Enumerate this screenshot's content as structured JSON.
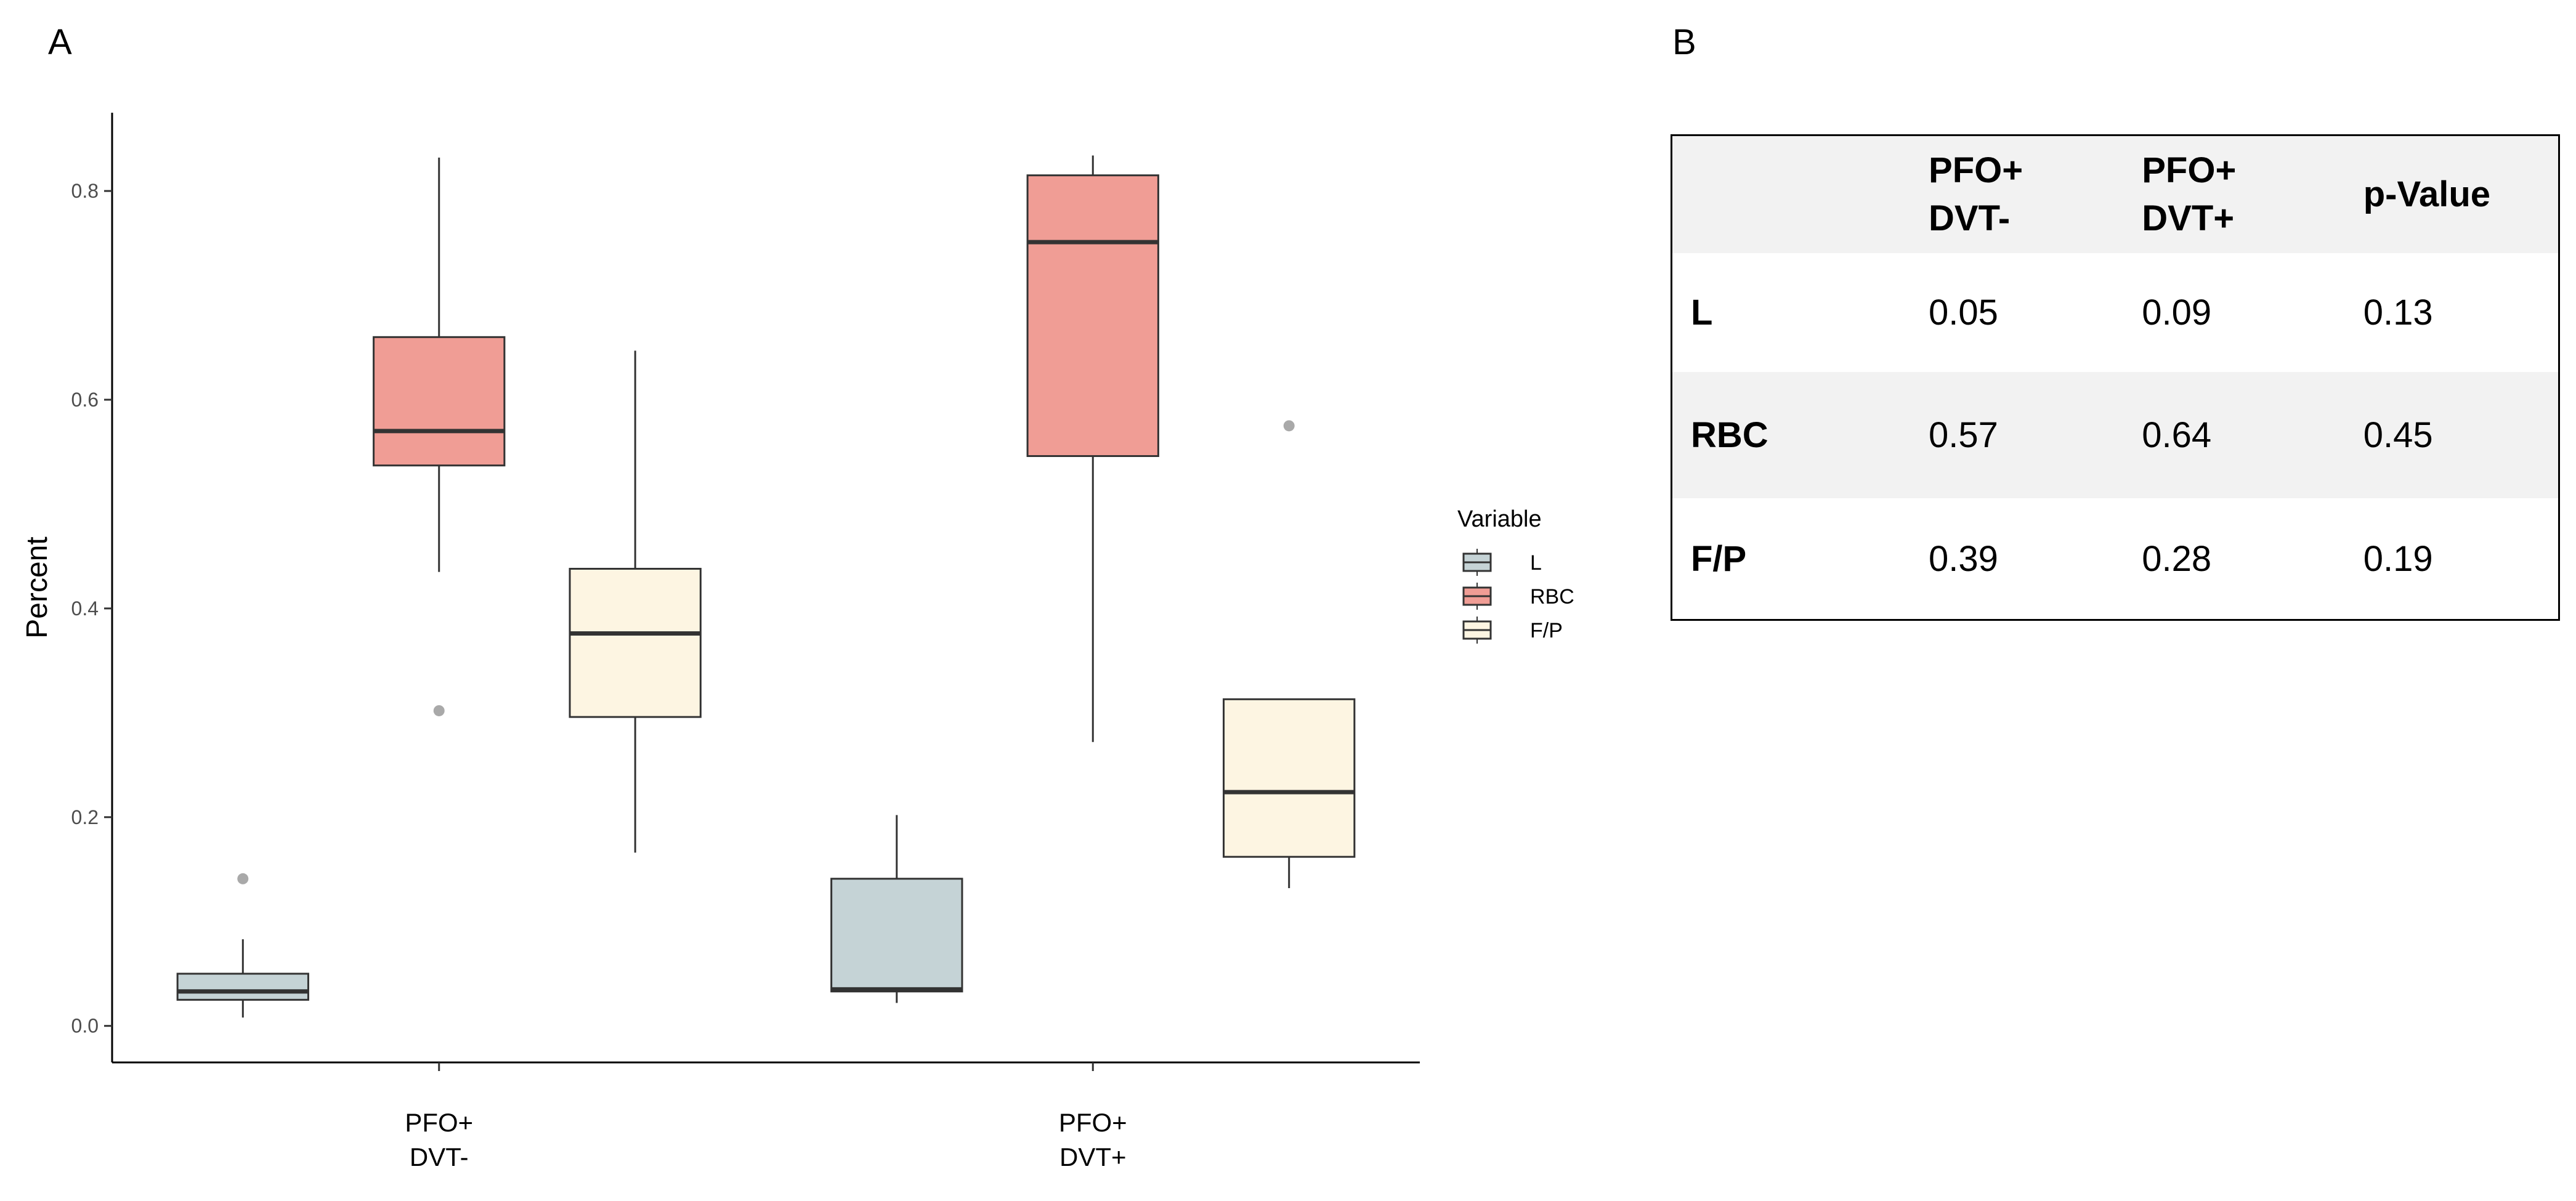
{
  "panel_labels": {
    "a": "A",
    "b": "B"
  },
  "colors": {
    "L": "#c5d3d6",
    "RBC": "#f09d95",
    "F/P": "#fdf5e2",
    "outline": "#333333",
    "median": "#333333",
    "outlier": "#a9a9a9"
  },
  "chart_data": {
    "type": "box",
    "ylabel": "Percent",
    "xlabel": "",
    "ylim": [
      -0.035,
      0.875
    ],
    "yticks": [
      0.0,
      0.2,
      0.4,
      0.6,
      0.8
    ],
    "ytick_labels": [
      "0.0",
      "0.2",
      "0.4",
      "0.6",
      "0.8"
    ],
    "grid": false,
    "legend_position": "right",
    "legend_title": "Variable",
    "categories": [
      {
        "lines": [
          "PFO+",
          "DVT-"
        ]
      },
      {
        "lines": [
          "PFO+",
          "DVT+"
        ]
      }
    ],
    "series": [
      {
        "name": "L",
        "boxes": [
          {
            "min": 0.008,
            "q1": 0.025,
            "median": 0.033,
            "q3": 0.05,
            "max": 0.083,
            "outliers": [
              0.141
            ]
          },
          {
            "min": 0.022,
            "q1": 0.033,
            "median": 0.035,
            "q3": 0.141,
            "max": 0.202,
            "outliers": []
          }
        ]
      },
      {
        "name": "RBC",
        "boxes": [
          {
            "min": 0.435,
            "q1": 0.537,
            "median": 0.57,
            "q3": 0.66,
            "max": 0.832,
            "outliers": [
              0.302
            ]
          },
          {
            "min": 0.272,
            "q1": 0.546,
            "median": 0.751,
            "q3": 0.815,
            "max": 0.834,
            "outliers": []
          }
        ]
      },
      {
        "name": "F/P",
        "boxes": [
          {
            "min": 0.166,
            "q1": 0.296,
            "median": 0.376,
            "q3": 0.438,
            "max": 0.647,
            "outliers": []
          },
          {
            "min": 0.132,
            "q1": 0.162,
            "median": 0.224,
            "q3": 0.313,
            "max": 0.313,
            "outliers": [
              0.575
            ]
          }
        ]
      }
    ]
  },
  "table": {
    "headers": [
      [
        ""
      ],
      [
        "PFO+",
        "DVT-"
      ],
      [
        "PFO+",
        "DVT+"
      ],
      [
        "p-Value"
      ]
    ],
    "rows": [
      {
        "label": "L",
        "values": [
          "0.05",
          "0.09",
          "0.13"
        ]
      },
      {
        "label": "RBC",
        "values": [
          "0.57",
          "0.64",
          "0.45"
        ]
      },
      {
        "label": "F/P",
        "values": [
          "0.39",
          "0.28",
          "0.19"
        ]
      }
    ]
  }
}
